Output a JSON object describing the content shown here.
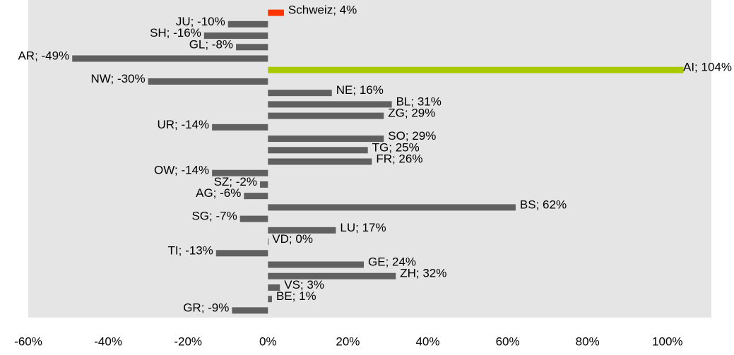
{
  "chart_data": {
    "type": "bar",
    "orientation": "horizontal",
    "values": [
      4,
      -10,
      -16,
      -8,
      -49,
      104,
      -30,
      16,
      31,
      29,
      -14,
      29,
      25,
      26,
      -14,
      -2,
      -6,
      62,
      -7,
      17,
      0,
      -13,
      24,
      32,
      3,
      1,
      -9
    ],
    "value_labels": [
      "Schweiz; 4%",
      "JU; -10%",
      "SH; -16%",
      "GL; -8%",
      "AR; -49%",
      "AI; 104%",
      "NW; -30%",
      "NE; 16%",
      "BL; 31%",
      "ZG; 29%",
      "UR; -14%",
      "SO; 29%",
      "TG; 25%",
      "FR; 26%",
      "OW; -14%",
      "SZ; -2%",
      "AG; -6%",
      "BS; 62%",
      "SG; -7%",
      "LU; 17%",
      "VD; 0%",
      "TI; -13%",
      "GE; 24%",
      "ZH; 32%",
      "VS; 3%",
      "BE; 1%",
      "GR; -9%"
    ],
    "colors": [
      "#ff3300",
      "#606060",
      "#606060",
      "#606060",
      "#606060",
      "#a8c800",
      "#606060",
      "#606060",
      "#606060",
      "#606060",
      "#606060",
      "#606060",
      "#606060",
      "#606060",
      "#606060",
      "#606060",
      "#606060",
      "#606060",
      "#606060",
      "#606060",
      "#606060",
      "#606060",
      "#606060",
      "#606060",
      "#606060",
      "#606060",
      "#606060"
    ],
    "xlim": [
      -60,
      111
    ],
    "xticks": [
      {
        "value": -60,
        "label": "-60%"
      },
      {
        "value": -40,
        "label": "-40%"
      },
      {
        "value": -20,
        "label": "-20%"
      },
      {
        "value": 0,
        "label": "0%"
      },
      {
        "value": 20,
        "label": "20%"
      },
      {
        "value": 40,
        "label": "40%"
      },
      {
        "value": 60,
        "label": "60%"
      },
      {
        "value": 80,
        "label": "80%"
      },
      {
        "value": 100,
        "label": "100%"
      }
    ]
  }
}
